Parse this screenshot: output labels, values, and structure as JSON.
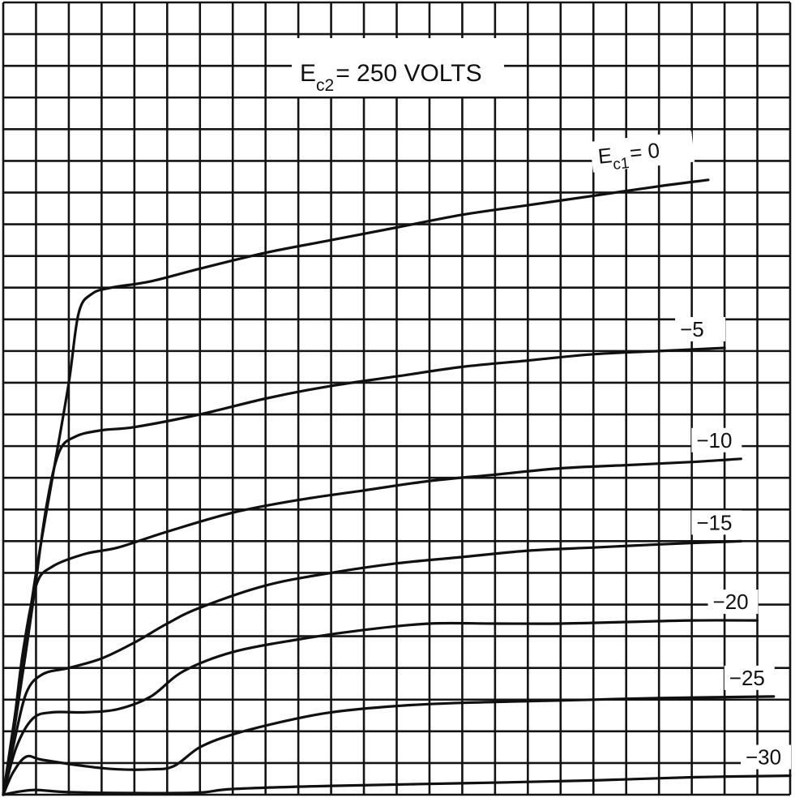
{
  "chart_data": {
    "type": "line",
    "title": {
      "prefix": "E",
      "sub": "c2",
      "rest": "= 250 VOLTS"
    },
    "xlabel": "",
    "ylabel": "",
    "xlim": [
      0,
      24
    ],
    "ylim": [
      0,
      25
    ],
    "grid": true,
    "grid_divisions": {
      "x": 24,
      "y": 25
    },
    "legend": "inline labels at right end of curves",
    "series": [
      {
        "name": "Ec1 = 0",
        "label_prefix": "E",
        "label_sub": "c1",
        "label_rest": "= 0",
        "points": [
          [
            0,
            0
          ],
          [
            0.5,
            3.5
          ],
          [
            1,
            7
          ],
          [
            1.5,
            10
          ],
          [
            2,
            13
          ],
          [
            2.3,
            15.2
          ],
          [
            2.7,
            15.8
          ],
          [
            3.3,
            16
          ],
          [
            4.5,
            16.2
          ],
          [
            6,
            16.6
          ],
          [
            8,
            17.1
          ],
          [
            10,
            17.5
          ],
          [
            12,
            17.9
          ],
          [
            14,
            18.3
          ],
          [
            16,
            18.6
          ],
          [
            18,
            18.9
          ],
          [
            20,
            19.2
          ],
          [
            21.5,
            19.4
          ]
        ]
      },
      {
        "name": "-5",
        "label": "−5",
        "points": [
          [
            0,
            0
          ],
          [
            0.4,
            2.5
          ],
          [
            0.9,
            6
          ],
          [
            1.3,
            9
          ],
          [
            1.7,
            10.8
          ],
          [
            2.2,
            11.3
          ],
          [
            3,
            11.5
          ],
          [
            4,
            11.6
          ],
          [
            6,
            12
          ],
          [
            8,
            12.5
          ],
          [
            10,
            12.9
          ],
          [
            12,
            13.2
          ],
          [
            14,
            13.5
          ],
          [
            16,
            13.7
          ],
          [
            18,
            13.9
          ],
          [
            20,
            14
          ],
          [
            22,
            14.1
          ]
        ]
      },
      {
        "name": "-10",
        "label": "−10",
        "points": [
          [
            0,
            0
          ],
          [
            0.3,
            2
          ],
          [
            0.6,
            4.5
          ],
          [
            1,
            6.6
          ],
          [
            1.5,
            7.2
          ],
          [
            2.5,
            7.6
          ],
          [
            3.5,
            7.8
          ],
          [
            5,
            8.3
          ],
          [
            7,
            8.9
          ],
          [
            9,
            9.3
          ],
          [
            11,
            9.6
          ],
          [
            13,
            9.9
          ],
          [
            15,
            10.1
          ],
          [
            17,
            10.3
          ],
          [
            19,
            10.4
          ],
          [
            21,
            10.5
          ],
          [
            22.5,
            10.6
          ]
        ]
      },
      {
        "name": "-15",
        "label": "−15",
        "points": [
          [
            0,
            0
          ],
          [
            0.3,
            1.5
          ],
          [
            0.7,
            3.2
          ],
          [
            1.2,
            3.8
          ],
          [
            2,
            4
          ],
          [
            3,
            4.3
          ],
          [
            4,
            4.8
          ],
          [
            5,
            5.4
          ],
          [
            6,
            5.9
          ],
          [
            8,
            6.6
          ],
          [
            10,
            7
          ],
          [
            12,
            7.3
          ],
          [
            14,
            7.5
          ],
          [
            16,
            7.7
          ],
          [
            18,
            7.8
          ],
          [
            20,
            7.9
          ],
          [
            22.5,
            8
          ]
        ]
      },
      {
        "name": "-20",
        "label": "−20",
        "points": [
          [
            0,
            0
          ],
          [
            0.4,
            1.5
          ],
          [
            0.9,
            2.4
          ],
          [
            1.5,
            2.6
          ],
          [
            2.5,
            2.6
          ],
          [
            3.5,
            2.7
          ],
          [
            4.5,
            3.1
          ],
          [
            5.5,
            3.9
          ],
          [
            7,
            4.5
          ],
          [
            9,
            4.9
          ],
          [
            11,
            5.2
          ],
          [
            13,
            5.4
          ],
          [
            15,
            5.4
          ],
          [
            17,
            5.4
          ],
          [
            19,
            5.45
          ],
          [
            21,
            5.5
          ],
          [
            23,
            5.5
          ]
        ]
      },
      {
        "name": "-25",
        "label": "−25",
        "points": [
          [
            0,
            0
          ],
          [
            0.3,
            0.7
          ],
          [
            0.7,
            1.2
          ],
          [
            1.2,
            1.1
          ],
          [
            2.5,
            0.9
          ],
          [
            3.5,
            0.8
          ],
          [
            4.5,
            0.8
          ],
          [
            5.2,
            0.9
          ],
          [
            6,
            1.5
          ],
          [
            7,
            1.9
          ],
          [
            8.5,
            2.3
          ],
          [
            10,
            2.6
          ],
          [
            12,
            2.8
          ],
          [
            14,
            2.9
          ],
          [
            16,
            2.95
          ],
          [
            18,
            3
          ],
          [
            20,
            3.05
          ],
          [
            23.5,
            3.1
          ]
        ]
      },
      {
        "name": "-30",
        "label": "−30",
        "points": [
          [
            0,
            0
          ],
          [
            0.5,
            0.1
          ],
          [
            1,
            0.15
          ],
          [
            2,
            0.08
          ],
          [
            4,
            0.05
          ],
          [
            6,
            0.07
          ],
          [
            7,
            0.18
          ],
          [
            10,
            0.28
          ],
          [
            14,
            0.36
          ],
          [
            18,
            0.45
          ],
          [
            21,
            0.55
          ],
          [
            24,
            0.6
          ]
        ]
      }
    ]
  }
}
